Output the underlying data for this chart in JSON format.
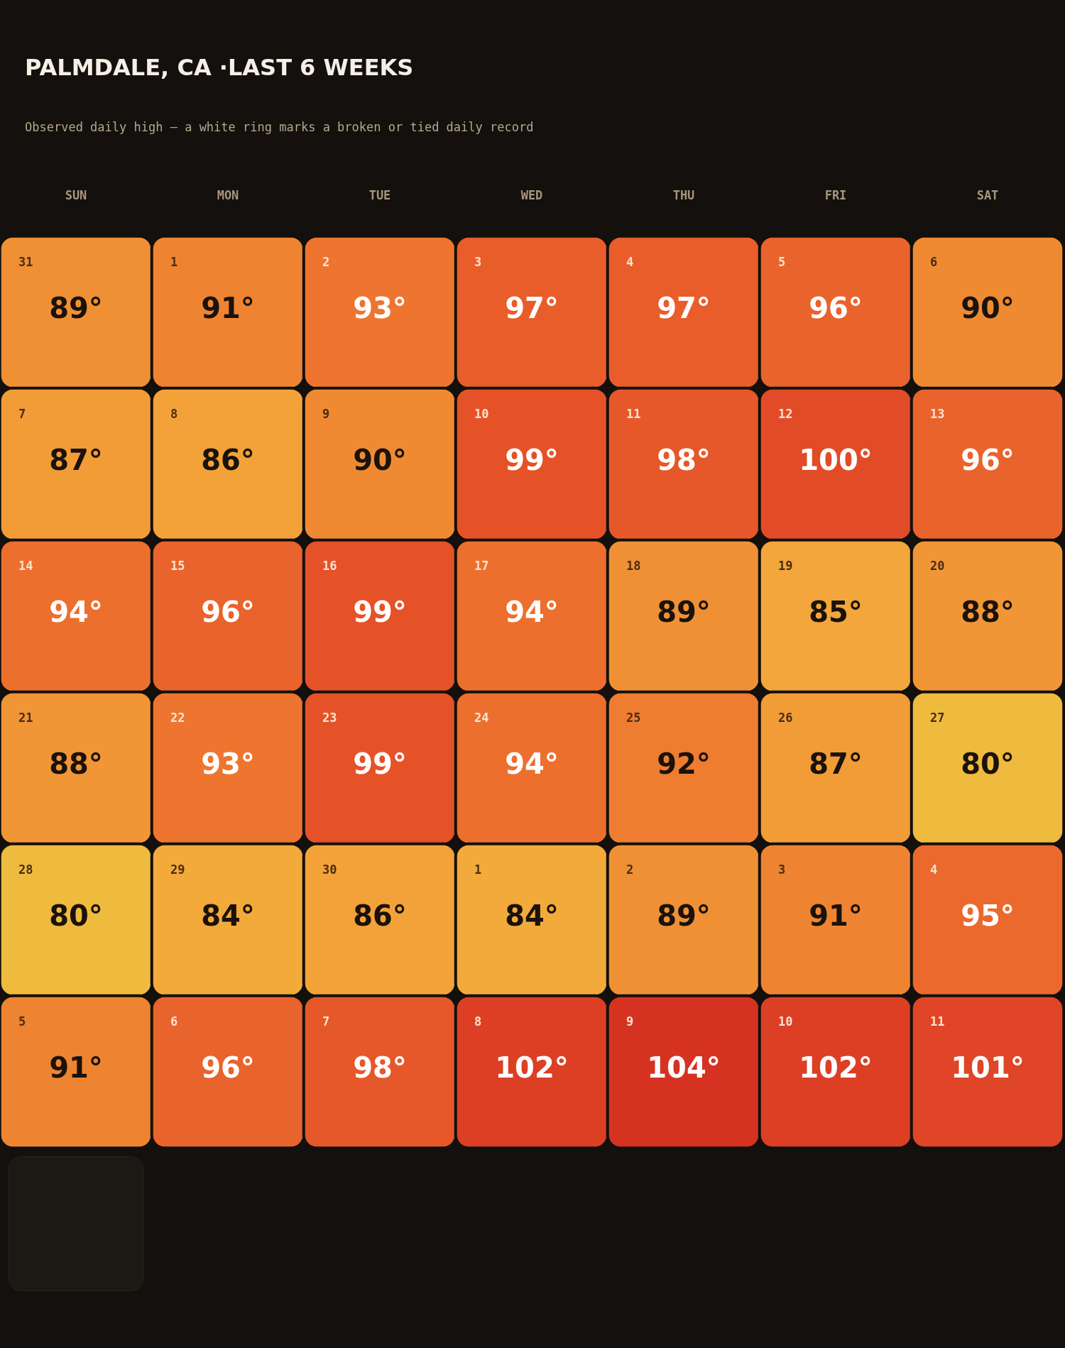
{
  "chart_data": {
    "type": "heatmap",
    "title": "PALMDALE, CA ·LAST 6 WEEKS",
    "subtitle": "Observed daily high — a white ring marks a broken or tied daily record",
    "categories": [
      "SUN",
      "MON",
      "TUE",
      "WED",
      "THU",
      "FRI",
      "SAT"
    ],
    "y_categories": [
      null,
      null,
      null,
      null,
      null,
      null
    ],
    "cells": [
      [
        89,
        91,
        93,
        97,
        97,
        96,
        90
      ],
      [
        87,
        86,
        90,
        99,
        98,
        100,
        96
      ],
      [
        94,
        96,
        99,
        94,
        89,
        85,
        88
      ],
      [
        88,
        93,
        99,
        94,
        92,
        87,
        80
      ],
      [
        80,
        84,
        86,
        84,
        89,
        91,
        95
      ],
      [
        91,
        96,
        98,
        102,
        104,
        102,
        101
      ]
    ],
    "cell_labels": [
      [
        "89°",
        "91°",
        "93°",
        "97°",
        "97°",
        "96°",
        "90°"
      ],
      [
        "87°",
        "86°",
        "90°",
        "99°",
        "98°",
        "100°",
        "96°"
      ],
      [
        "94°",
        "96°",
        "99°",
        "94°",
        "89°",
        "85°",
        "88°"
      ],
      [
        "88°",
        "93°",
        "99°",
        "94°",
        "92°",
        "87°",
        "80°"
      ],
      [
        "80°",
        "84°",
        "86°",
        "84°",
        "89°",
        "91°",
        "95°"
      ],
      [
        "91°",
        "96°",
        "98°",
        "102°",
        "104°",
        "102°",
        "101°"
      ]
    ],
    "annotations": [
      "31",
      "1",
      "2",
      "3",
      "4",
      "5",
      "6",
      "7",
      "8",
      "9",
      "10",
      "11",
      "12",
      "13",
      "14",
      "15",
      "16",
      "17",
      "18",
      "19",
      "20",
      "21",
      "22",
      "23",
      "24",
      "25",
      "26",
      "27",
      "28",
      "29",
      "30",
      "1",
      "2",
      "3",
      "4",
      "5",
      "6",
      "7",
      "8",
      "9",
      "10",
      "11"
    ]
  }
}
